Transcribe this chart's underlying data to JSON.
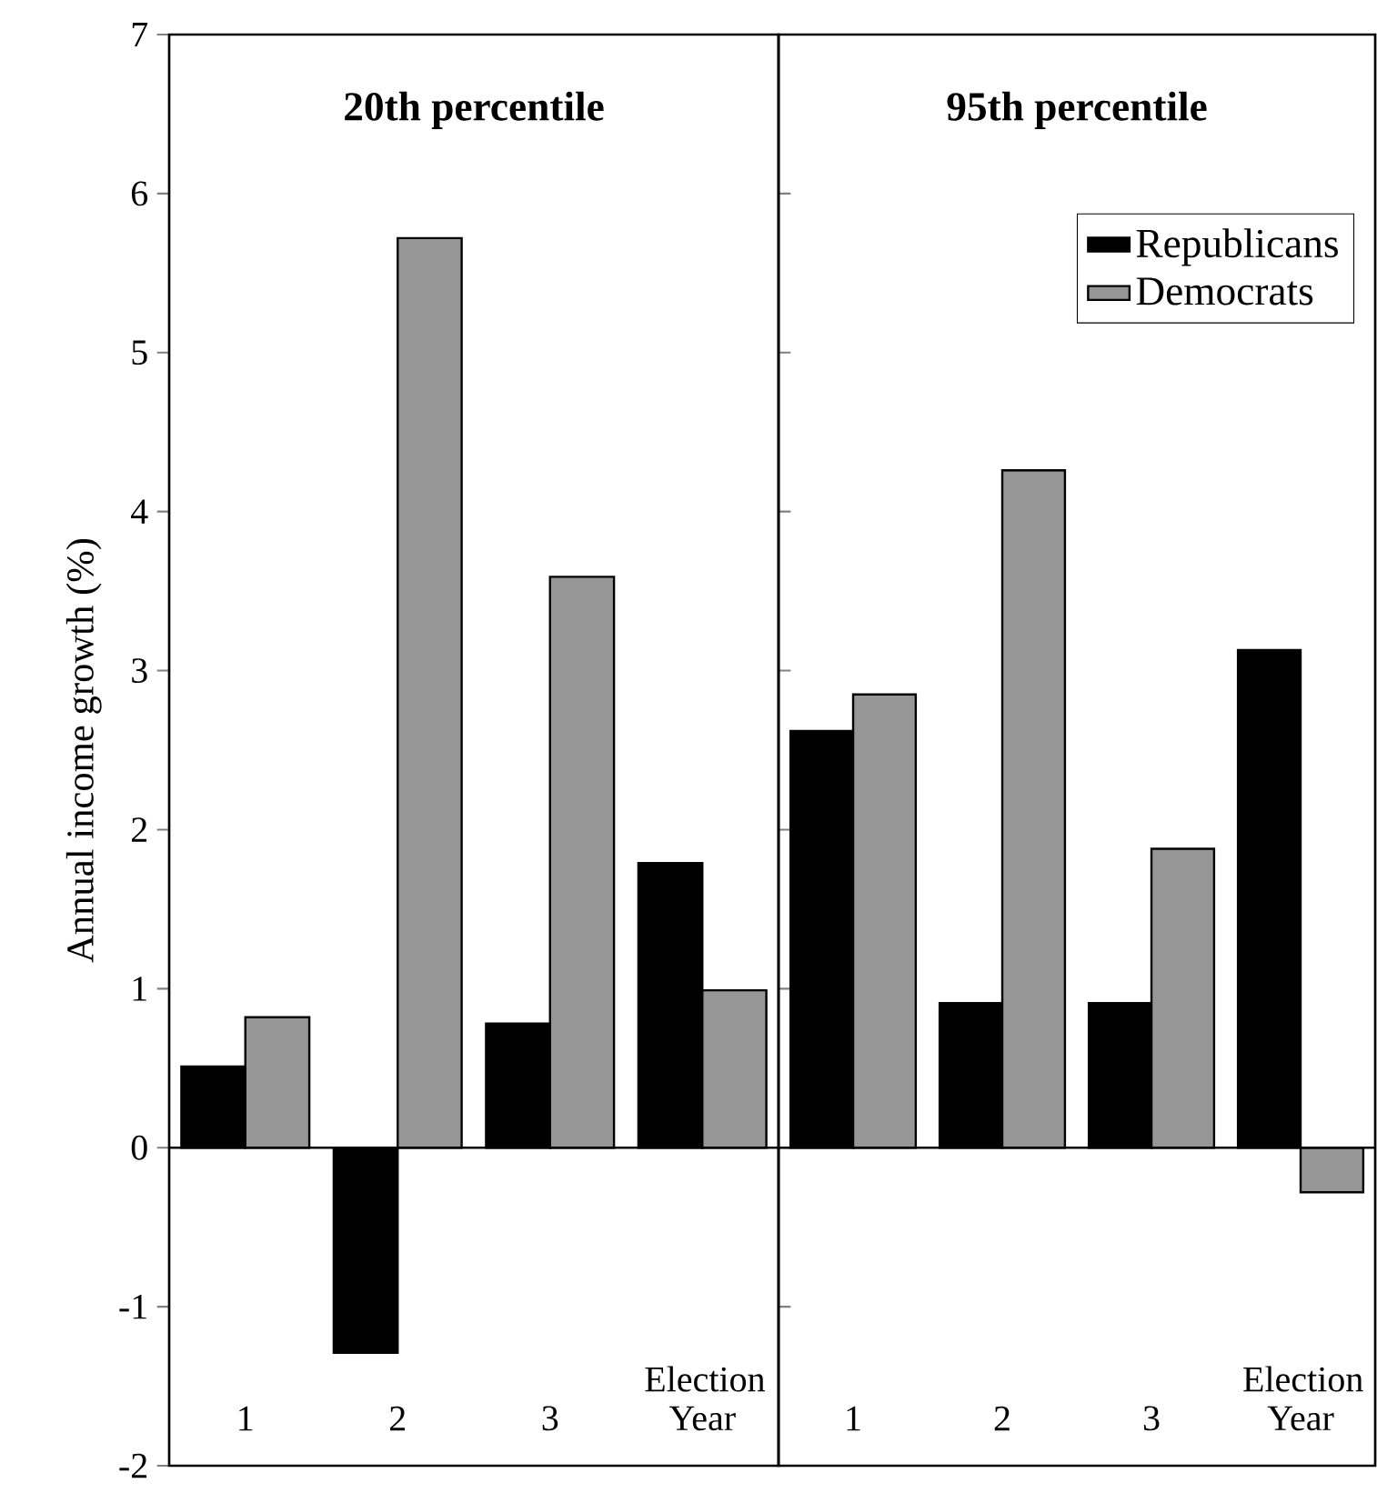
{
  "chart_data": [
    {
      "type": "bar",
      "title": "20th percentile",
      "ylabel": "Annual income growth (%)",
      "categories": [
        "1",
        "2",
        "3",
        "Election Year"
      ],
      "series": [
        {
          "color": "#000000",
          "values": [
            0.51,
            -1.29,
            0.78,
            1.79
          ]
        },
        {
          "color": "#969696",
          "values": [
            0.82,
            5.72,
            3.59,
            0.99
          ]
        }
      ],
      "ylim": [
        -2,
        7
      ],
      "yticks": [
        -2,
        -1,
        0,
        1,
        2,
        3,
        4,
        5,
        6,
        7
      ],
      "ref_lines": [
        {
          "axis": "y",
          "value": 0
        }
      ],
      "grid": false,
      "legend": false
    },
    {
      "type": "bar",
      "title": "95th percentile",
      "categories": [
        "1",
        "2",
        "3",
        "Election Year"
      ],
      "series": [
        {
          "name": "Republicans",
          "color": "#000000",
          "values": [
            2.62,
            0.91,
            0.91,
            3.13
          ]
        },
        {
          "name": "Democrats",
          "color": "#969696",
          "values": [
            2.85,
            4.26,
            1.88,
            -0.28
          ]
        }
      ],
      "ylim": [
        -2,
        7
      ],
      "yticks": [
        -2,
        -1,
        0,
        1,
        2,
        3,
        4,
        5,
        6,
        7
      ],
      "ref_lines": [
        {
          "axis": "y",
          "value": 0
        }
      ],
      "grid": false,
      "legend": "top right",
      "tick_labels": "x"
    }
  ]
}
